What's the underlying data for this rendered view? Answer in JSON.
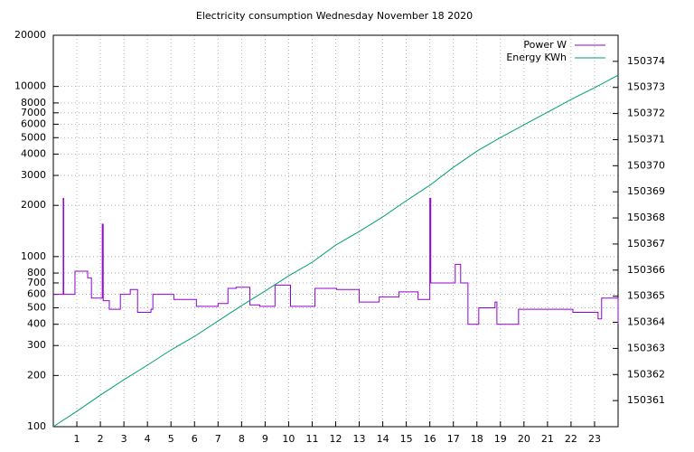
{
  "chart_data": {
    "type": "line",
    "title": "Electricity consumption Wednesday November 18 2020",
    "xlim": [
      0,
      24
    ],
    "xticks": [
      1,
      2,
      3,
      4,
      5,
      6,
      7,
      8,
      9,
      10,
      11,
      12,
      13,
      14,
      15,
      16,
      17,
      18,
      19,
      20,
      21,
      22,
      23
    ],
    "ylim": [
      100,
      20000
    ],
    "ylog": true,
    "yticks": [
      100,
      200,
      300,
      400,
      500,
      600,
      700,
      800,
      1000,
      2000,
      3000,
      4000,
      5000,
      6000,
      7000,
      8000,
      10000,
      20000
    ],
    "y2lim": [
      150360,
      150375
    ],
    "y2ticks": [
      150361,
      150362,
      150363,
      150364,
      150365,
      150366,
      150367,
      150368,
      150369,
      150370,
      150371,
      150372,
      150373,
      150374
    ],
    "grid": true,
    "legend": "top-right",
    "series": [
      {
        "name": "Power W",
        "color": "#9400d3",
        "x": [
          0,
          0.42,
          0.42,
          0.44,
          0.44,
          0.92,
          0.92,
          1.46,
          1.46,
          1.62,
          1.62,
          2.08,
          2.08,
          2.12,
          2.12,
          2.38,
          2.38,
          2.85,
          2.85,
          3.27,
          3.27,
          3.58,
          3.58,
          4.15,
          4.15,
          4.23,
          4.23,
          5.12,
          5.12,
          6.08,
          6.08,
          7.0,
          7.0,
          7.42,
          7.42,
          7.77,
          7.77,
          8.35,
          8.35,
          8.77,
          8.77,
          9.42,
          9.42,
          10.08,
          10.08,
          11.12,
          11.12,
          12.04,
          12.04,
          13.0,
          13.0,
          13.85,
          13.85,
          14.69,
          14.69,
          15.5,
          15.5,
          16.0,
          16.0,
          16.04,
          16.04,
          17.08,
          17.08,
          17.31,
          17.31,
          17.62,
          17.62,
          18.08,
          18.08,
          18.77,
          18.77,
          18.85,
          18.85,
          19.77,
          19.77,
          22.08,
          22.08,
          23.15,
          23.15,
          23.3,
          23.3,
          24,
          24
        ],
        "values": [
          600,
          600,
          2200,
          2200,
          600,
          600,
          820,
          820,
          750,
          750,
          570,
          570,
          1550,
          1550,
          550,
          550,
          490,
          490,
          600,
          600,
          640,
          640,
          470,
          470,
          490,
          490,
          600,
          600,
          560,
          560,
          510,
          510,
          530,
          530,
          650,
          650,
          660,
          660,
          520,
          520,
          510,
          510,
          680,
          680,
          510,
          510,
          650,
          650,
          640,
          640,
          540,
          540,
          580,
          580,
          620,
          620,
          560,
          560,
          2200,
          2200,
          700,
          700,
          900,
          900,
          700,
          700,
          400,
          400,
          500,
          500,
          540,
          540,
          400,
          400,
          490,
          490,
          470,
          470,
          430,
          430,
          570,
          570,
          400
        ]
      },
      {
        "name": "Energy KWh",
        "color": "#009e73",
        "axis": "y2",
        "x": [
          0,
          1,
          2,
          3,
          4,
          5,
          6,
          7,
          8,
          9,
          10,
          11,
          12,
          13,
          14,
          15,
          16,
          17,
          18,
          19,
          20,
          21,
          22,
          23,
          24
        ],
        "values": [
          150360,
          150360.59,
          150361.21,
          150361.8,
          150362.36,
          150362.94,
          150363.46,
          150364.05,
          150364.64,
          150365.2,
          150365.78,
          150366.3,
          150366.96,
          150367.48,
          150368.04,
          150368.66,
          150369.25,
          150369.94,
          150370.56,
          150371.08,
          150371.57,
          150372.05,
          150372.54,
          150372.99,
          150373.47
        ]
      }
    ]
  }
}
